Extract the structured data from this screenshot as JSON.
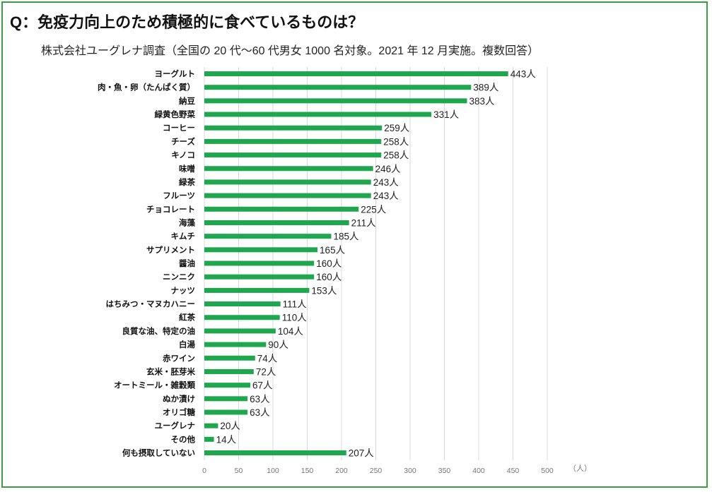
{
  "page": {
    "title": "Q：免疫力向上のため積極的に食べているものは？",
    "subtitle": "株式会社ユーグレナ調査（全国の 20 代〜60 代男女 1000 名対象。2021 年 12 月実施。複数回答）"
  },
  "colors": {
    "bar": "#1fa74f",
    "frame": "#3a9d44",
    "grid": "#d9d9d9"
  },
  "chart_data": {
    "type": "bar",
    "orientation": "horizontal",
    "title": "Q：免疫力向上のため積極的に食べているものは？",
    "categories": [
      "ヨーグルト",
      "肉・魚・卵（たんぱく質）",
      "納豆",
      "緑黄色野菜",
      "コーヒー",
      "チーズ",
      "キノコ",
      "味噌",
      "緑茶",
      "フルーツ",
      "チョコレート",
      "海藻",
      "キムチ",
      "サプリメント",
      "醤油",
      "ニンニク",
      "ナッツ",
      "はちみつ・マヌカハニー",
      "紅茶",
      "良質な油、特定の油",
      "白湯",
      "赤ワイン",
      "玄米・胚芽米",
      "オートミール・雑穀類",
      "ぬか漬け",
      "オリゴ糖",
      "ユーグレナ",
      "その他",
      "何も摂取していない"
    ],
    "values": [
      443,
      389,
      383,
      331,
      259,
      258,
      258,
      246,
      243,
      243,
      225,
      211,
      185,
      165,
      160,
      160,
      153,
      111,
      110,
      104,
      90,
      74,
      72,
      67,
      63,
      63,
      20,
      14,
      207
    ],
    "value_suffix": "人",
    "xticks": [
      0,
      50,
      100,
      150,
      200,
      250,
      300,
      350,
      400,
      450,
      500
    ],
    "xlim": [
      0,
      500
    ],
    "xunit": "（人）",
    "grid": true
  }
}
